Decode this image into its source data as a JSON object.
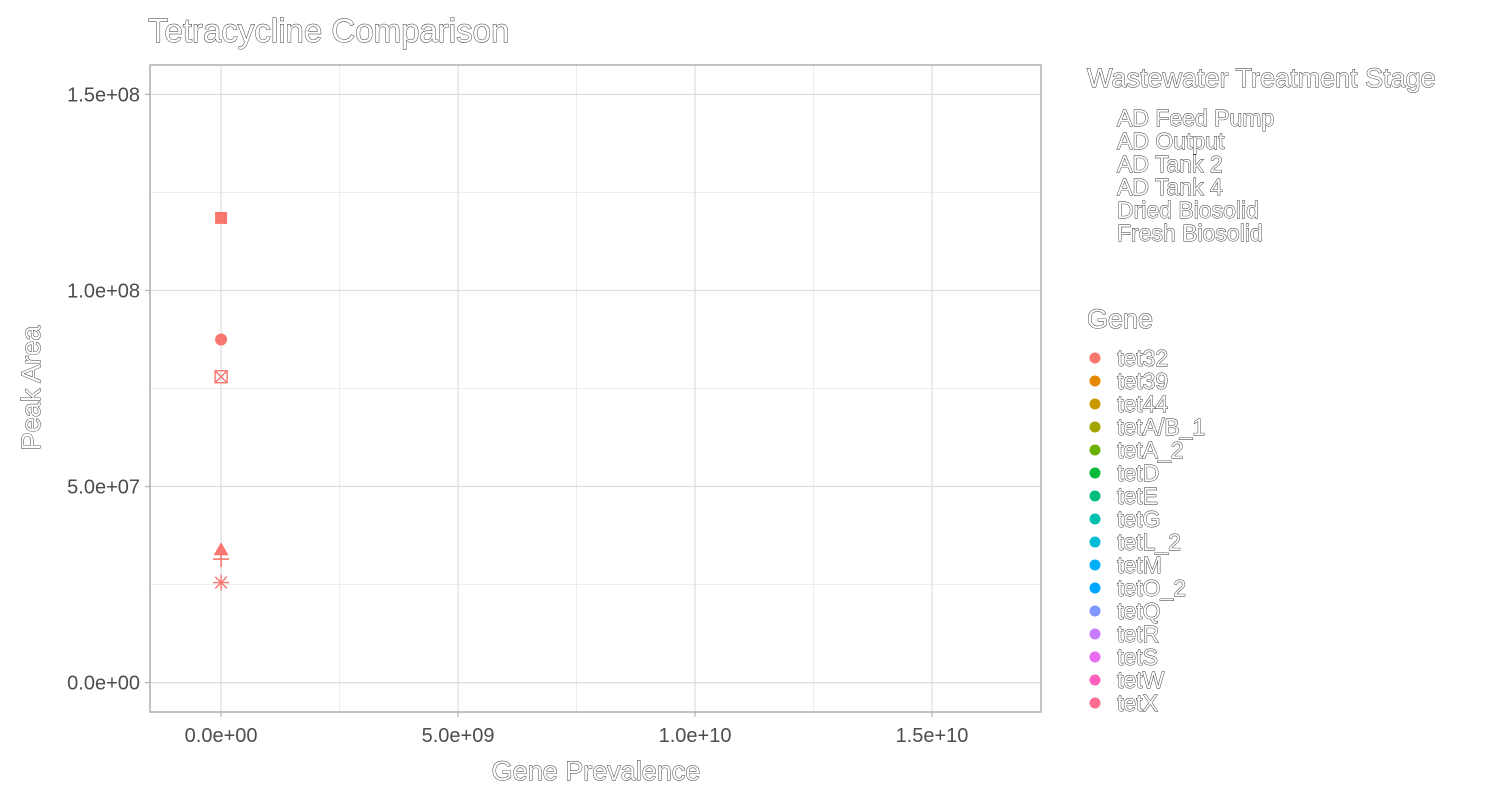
{
  "chart_data": {
    "type": "scatter",
    "title": "Tetracycline Comparison",
    "xlabel": "Gene Prevalence",
    "ylabel": "Peak Area",
    "xlim": [
      -1500000000,
      17300000000
    ],
    "ylim": [
      -7500000,
      157500000
    ],
    "x_ticks": [
      0,
      5000000000,
      10000000000,
      15000000000
    ],
    "x_tick_labels": [
      "0.0e+00",
      "5.0e+09",
      "1.0e+10",
      "1.5e+10"
    ],
    "y_ticks": [
      0,
      50000000,
      100000000,
      150000000
    ],
    "y_tick_labels": [
      "0.0e+00",
      "5.0e+07",
      "1.0e+08",
      "1.5e+08"
    ],
    "grid": true,
    "legend_position": "right",
    "legends": [
      {
        "title": "Wastewater Treatment Stage",
        "items": [
          "AD Feed Pump",
          "AD Output",
          "AD Tank 2",
          "AD Tank 4",
          "Dried Biosolid",
          "Fresh Biosolid"
        ]
      },
      {
        "title": "Gene",
        "items": [
          "tet32",
          "tet39",
          "tet44",
          "tetA/B_1",
          "tetA_2",
          "tetD",
          "tetE",
          "tetG",
          "tetL_2",
          "tetM",
          "tetO_2",
          "tetQ",
          "tetR",
          "tetS",
          "tetW",
          "tetX"
        ],
        "colors": [
          "#F8766D",
          "#E58700",
          "#C99800",
          "#A3A500",
          "#6BB100",
          "#00BA38",
          "#00BF7D",
          "#00C0AF",
          "#00BCD8",
          "#00B0F6",
          "#00A5FF",
          "#7F96FF",
          "#C77CFF",
          "#E76BF3",
          "#FF62BC",
          "#FF6C91"
        ]
      }
    ],
    "points": [
      {
        "x": 0,
        "y": 118500000,
        "gene": "tet32",
        "shape": "square"
      },
      {
        "x": 0,
        "y": 87500000,
        "gene": "tet32",
        "shape": "circle"
      },
      {
        "x": 0,
        "y": 78000000,
        "gene": "tet32",
        "shape": "square-cross"
      },
      {
        "x": 0,
        "y": 34000000,
        "gene": "tet32",
        "shape": "triangle"
      },
      {
        "x": 0,
        "y": 31500000,
        "gene": "tet32",
        "shape": "plus"
      },
      {
        "x": 0,
        "y": 25500000,
        "gene": "tet32",
        "shape": "asterisk"
      }
    ]
  }
}
